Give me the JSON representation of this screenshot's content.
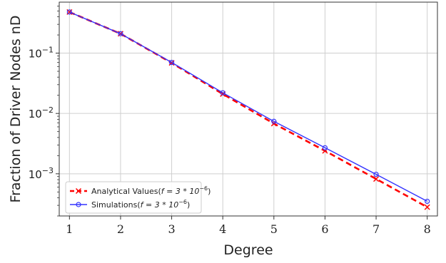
{
  "chart_data": {
    "type": "line",
    "title": "",
    "xlabel": "Degree",
    "ylabel": "Fraction of Driver Nodes nD",
    "x": [
      1,
      2,
      3,
      4,
      5,
      6,
      7,
      8
    ],
    "xlim": [
      0.8,
      8.2
    ],
    "ylim": [
      0.0002,
      0.7
    ],
    "yscale": "log",
    "grid": true,
    "legend_position": "lower-left",
    "x_ticks": [
      "1",
      "2",
      "3",
      "4",
      "5",
      "6",
      "7",
      "8"
    ],
    "y_ticks": [
      {
        "value": 0.1,
        "base": "10",
        "exp": "−1"
      },
      {
        "value": 0.01,
        "base": "10",
        "exp": "−2"
      },
      {
        "value": 0.001,
        "base": "10",
        "exp": "−3"
      }
    ],
    "series": [
      {
        "name": "Analytical Values(",
        "name_math": "f = 3 * 10",
        "name_exp": "−6",
        "name_tail": ")",
        "color": "#ff0000",
        "dash": "8,5",
        "marker": "x",
        "values": [
          0.48,
          0.21,
          0.069,
          0.021,
          0.0068,
          0.0024,
          0.00082,
          0.00028
        ]
      },
      {
        "name": "Simulations(",
        "name_math": "f = 3 * 10",
        "name_exp": "−6",
        "name_tail": ")",
        "color": "#3333ff",
        "dash": "",
        "marker": "o",
        "values": [
          0.48,
          0.21,
          0.07,
          0.022,
          0.0074,
          0.0027,
          0.00098,
          0.00035
        ]
      }
    ]
  }
}
